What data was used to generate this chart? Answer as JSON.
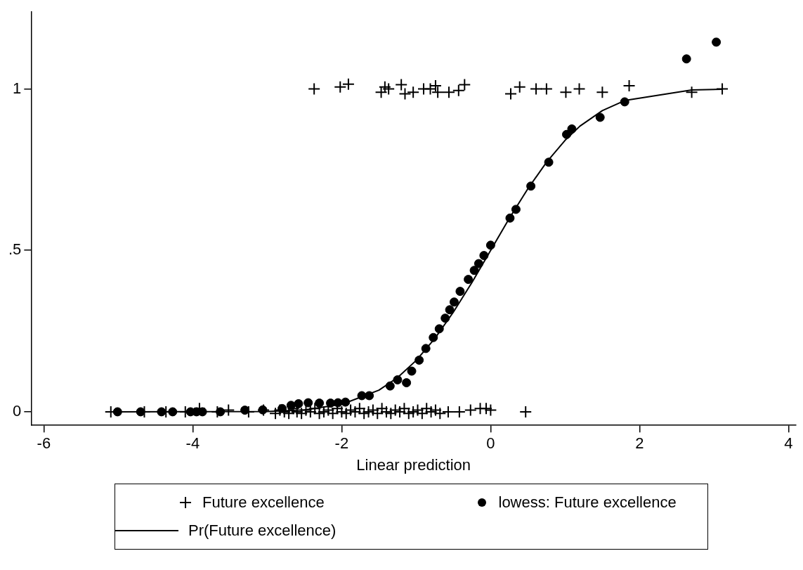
{
  "chart_data": {
    "type": "scatter",
    "xlabel": "Linear prediction",
    "xlim": [
      -6.17,
      4.1
    ],
    "xticks": [
      -6,
      -4,
      -2,
      0,
      2,
      4
    ],
    "ylim": [
      -0.042,
      1.238
    ],
    "yticks": [
      0,
      {
        "value": 0.5,
        "label": ".5"
      },
      1
    ],
    "grid": false,
    "legend": "bottom",
    "series": [
      {
        "name": "Future excellence",
        "marker": "cross",
        "color": "#000000",
        "x": [
          -5.1,
          -4.65,
          -4.36,
          -4.1,
          -3.91,
          -3.67,
          -3.52,
          -3.25,
          -3.05,
          -2.89,
          -2.83,
          -2.77,
          -2.71,
          -2.65,
          -2.6,
          -2.54,
          -2.48,
          -2.42,
          -2.36,
          -2.3,
          -2.24,
          -2.18,
          -2.12,
          -2.06,
          -2.0,
          -1.94,
          -1.88,
          -1.82,
          -1.76,
          -1.7,
          -1.64,
          -1.58,
          -1.52,
          -1.46,
          -1.4,
          -1.34,
          -1.28,
          -1.22,
          -1.16,
          -1.1,
          -1.04,
          -0.98,
          -0.92,
          -0.86,
          -0.8,
          -0.74,
          -0.68,
          -0.57,
          -0.42,
          -0.27,
          -0.14,
          -0.06,
          0.0,
          0.47,
          -2.37,
          -2.02,
          -1.91,
          -1.42,
          -1.47,
          -1.37,
          -1.2,
          -1.15,
          -1.04,
          -0.9,
          -0.81,
          -0.74,
          -0.71,
          -0.56,
          -0.43,
          -0.35,
          0.27,
          0.39,
          0.61,
          0.75,
          1.01,
          1.19,
          1.5,
          1.86,
          2.7,
          3.11
        ],
        "values": [
          0,
          0,
          0,
          0,
          0.01,
          0,
          0.005,
          0,
          0.005,
          -0.005,
          0.005,
          0,
          -0.005,
          0.01,
          0,
          -0.005,
          0.005,
          0,
          0.01,
          -0.005,
          0,
          0.005,
          -0.005,
          0.01,
          0,
          -0.005,
          0.005,
          0,
          0.01,
          -0.005,
          0,
          0.005,
          -0.005,
          0.01,
          0,
          -0.005,
          0.005,
          0,
          0.01,
          -0.005,
          0,
          0.005,
          -0.005,
          0.01,
          0,
          0.005,
          -0.005,
          0,
          0,
          0.005,
          0.01,
          0.01,
          0.005,
          0,
          1.0,
          1.006,
          1.015,
          1.006,
          0.99,
          1.0,
          1.013,
          0.985,
          0.99,
          1.0,
          1.0,
          1.01,
          0.99,
          0.99,
          0.995,
          1.013,
          0.985,
          1.006,
          1.0,
          1.0,
          0.99,
          1.0,
          0.99,
          1.01,
          0.99,
          1.0
        ]
      },
      {
        "name": "lowess: Future excellence",
        "marker": "circle",
        "color": "#000000",
        "x": [
          -5.01,
          -4.7,
          -4.42,
          -4.27,
          -4.03,
          -3.95,
          -3.87,
          -3.63,
          -3.3,
          -3.06,
          -2.8,
          -2.68,
          -2.58,
          -2.45,
          -2.3,
          -2.15,
          -2.05,
          -1.95,
          -1.73,
          -1.63,
          -1.35,
          -1.25,
          -1.13,
          -1.06,
          -0.96,
          -0.87,
          -0.77,
          -0.69,
          -0.61,
          -0.55,
          -0.49,
          -0.41,
          -0.3,
          -0.22,
          -0.16,
          -0.09,
          0.0,
          0.26,
          0.34,
          0.54,
          0.78,
          1.02,
          1.09,
          1.47,
          1.8,
          2.63,
          3.03
        ],
        "values": [
          0,
          0,
          0,
          0,
          0,
          0,
          0,
          0,
          0.005,
          0.006,
          0.01,
          0.02,
          0.025,
          0.028,
          0.027,
          0.027,
          0.028,
          0.03,
          0.05,
          0.05,
          0.08,
          0.099,
          0.09,
          0.126,
          0.16,
          0.196,
          0.23,
          0.257,
          0.29,
          0.316,
          0.34,
          0.373,
          0.41,
          0.438,
          0.459,
          0.484,
          0.516,
          0.6,
          0.627,
          0.699,
          0.773,
          0.859,
          0.876,
          0.912,
          0.96,
          1.093,
          1.145
        ]
      },
      {
        "name": "Pr(Future excellence)",
        "type": "line",
        "marker": "none",
        "line_style": "solid",
        "color": "#000000",
        "x": [
          -5.1,
          -3.0,
          -2.5,
          -2.0,
          -1.5,
          -1.25,
          -1.0,
          -0.75,
          -0.5,
          -0.25,
          0.0,
          0.25,
          0.5,
          0.75,
          1.0,
          1.2,
          1.5,
          1.8,
          2.7,
          3.11
        ],
        "values": [
          0,
          0.001,
          0.006,
          0.023,
          0.067,
          0.106,
          0.159,
          0.227,
          0.309,
          0.401,
          0.5,
          0.599,
          0.691,
          0.773,
          0.841,
          0.885,
          0.933,
          0.964,
          0.997,
          0.999
        ]
      }
    ]
  }
}
